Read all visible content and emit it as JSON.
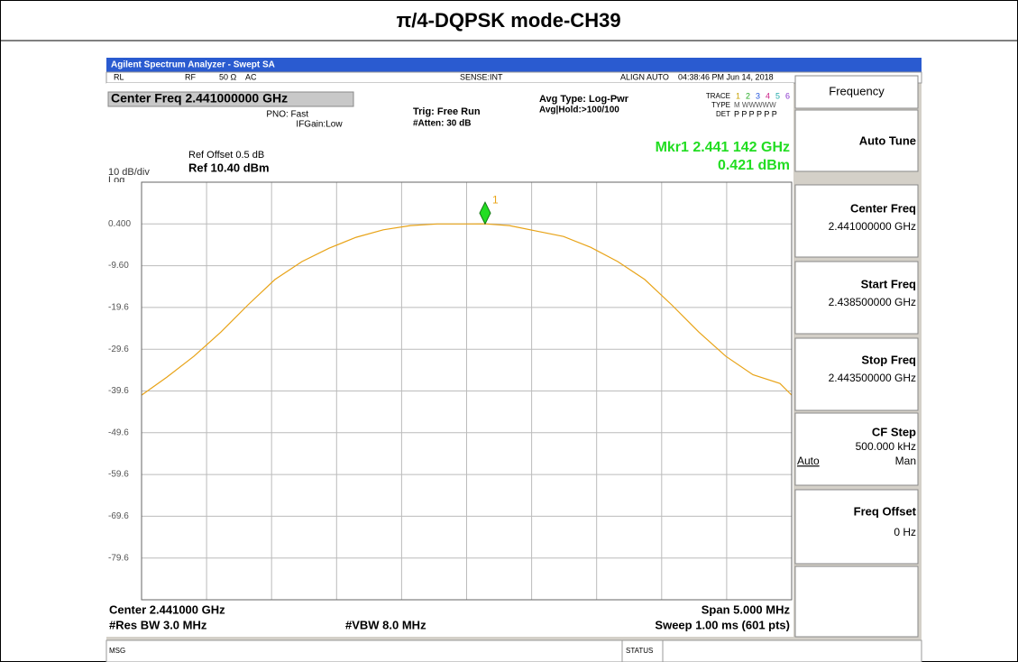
{
  "title": "π/4-DQPSK mode-CH39",
  "window_title": "Agilent Spectrum Analyzer - Swept SA",
  "status_bar": {
    "rl": "RL",
    "rf": "RF",
    "imp": "50 Ω",
    "ac": "AC",
    "sense": "SENSE:INT",
    "align": "ALIGN AUTO",
    "time": "04:38:46 PM Jun 14, 2018"
  },
  "header": {
    "center_freq": "Center Freq  2.441000000 GHz",
    "pno": "PNO: Fast",
    "ifgain": "IFGain:Low",
    "trig": "Trig: Free Run",
    "atten": "#Atten: 30 dB",
    "avg_type": "Avg Type: Log-Pwr",
    "avg_hold": "Avg|Hold:>100/100",
    "trace_label": "TRACE",
    "trace_nums": [
      "1",
      "2",
      "3",
      "4",
      "5",
      "6"
    ],
    "type_label": "TYPE",
    "type_val": "M WWWWW",
    "det_label": "DET",
    "det_val": "P P P P P P"
  },
  "ref_offset": "Ref Offset 0.5 dB",
  "scale": "10 dB/div",
  "ref": "Ref 10.40 dBm",
  "log": "Log",
  "marker_freq": "Mkr1 2.441 142 GHz",
  "marker_amp": "0.421 dBm",
  "marker": {
    "x": 2.441142,
    "y": 0.421,
    "label": "1"
  },
  "chart_data": {
    "type": "line",
    "xlim": [
      2.4385,
      2.4435
    ],
    "ylim": [
      -89.6,
      10.4
    ],
    "yticks": [
      {
        "value": 0.4,
        "label": "0.400"
      },
      {
        "value": -9.6,
        "label": "-9.60"
      },
      -19.6,
      -29.6,
      -39.6,
      -49.6,
      -59.6,
      -69.6,
      -79.6
    ],
    "grid": true,
    "x": [
      2.4385,
      2.438694,
      2.438902,
      2.43911,
      2.439318,
      2.439526,
      2.439734,
      2.439942,
      2.44015,
      2.440359,
      2.440567,
      2.440775,
      2.440983,
      2.441142,
      2.441329,
      2.441537,
      2.441745,
      2.441954,
      2.442162,
      2.44237,
      2.442578,
      2.442786,
      2.442994,
      2.443202,
      2.44341,
      2.4435
    ],
    "series": [
      {
        "color": "#e8a317",
        "values": [
          -40.6,
          -36.3,
          -31.3,
          -25.5,
          -19.0,
          -12.9,
          -8.6,
          -5.4,
          -2.8,
          -1.0,
          0.0,
          0.4,
          0.4,
          0.421,
          0.0,
          -1.3,
          -2.6,
          -5.2,
          -8.6,
          -12.9,
          -19.0,
          -25.5,
          -31.3,
          -35.7,
          -37.8,
          -40.6
        ]
      }
    ]
  },
  "footer": {
    "center": "Center 2.441000 GHz",
    "rbw": "#Res BW 3.0 MHz",
    "vbw": "#VBW 8.0 MHz",
    "span": "Span 5.000 MHz",
    "sweep": "Sweep  1.00 ms (601 pts)"
  },
  "msg": "MSG",
  "status": "STATUS",
  "softkeys": {
    "header": "Frequency",
    "auto_tune": "Auto Tune",
    "center": {
      "label": "Center Freq",
      "value": "2.441000000 GHz"
    },
    "start": {
      "label": "Start Freq",
      "value": "2.438500000 GHz"
    },
    "stop": {
      "label": "Stop Freq",
      "value": "2.443500000 GHz"
    },
    "cf_step": {
      "label": "CF Step",
      "value": "500.000 kHz",
      "auto": "Auto",
      "man": "Man"
    },
    "offset": {
      "label": "Freq Offset",
      "value": "0 Hz"
    }
  }
}
